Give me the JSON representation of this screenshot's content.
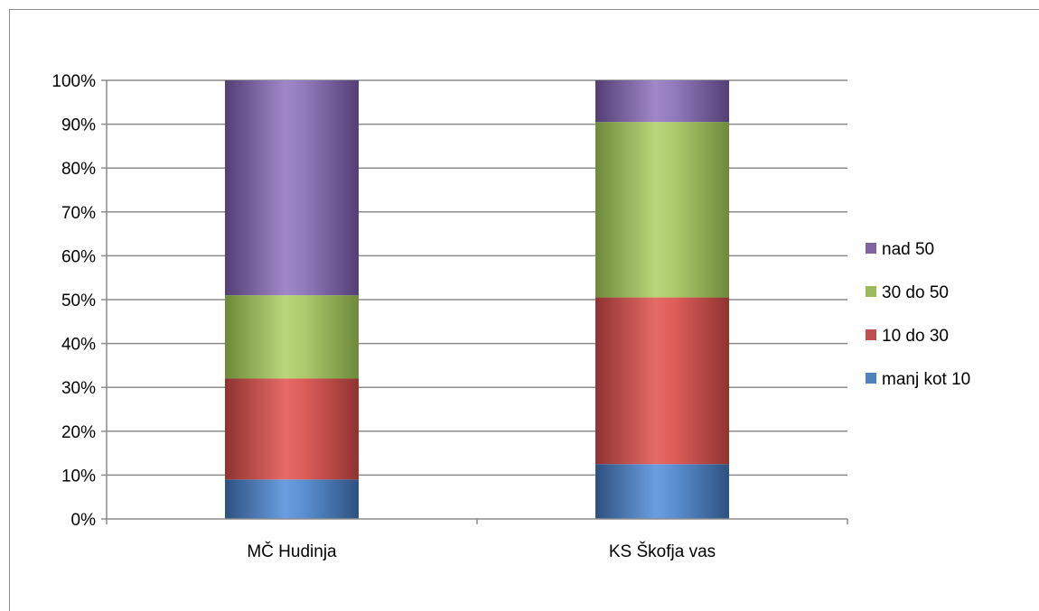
{
  "chart_data": {
    "type": "bar",
    "stacked": true,
    "percent": true,
    "categories": [
      "MČ Hudinja",
      "KS Škofja vas"
    ],
    "series": [
      {
        "name": "manj kot 10",
        "values": [
          9,
          12.5
        ],
        "color": "#4f81bd"
      },
      {
        "name": "10 do 30",
        "values": [
          23,
          38
        ],
        "color": "#c0504d"
      },
      {
        "name": "30 do 50",
        "values": [
          19,
          40
        ],
        "color": "#9bbb59"
      },
      {
        "name": "nad 50",
        "values": [
          49,
          9.5
        ],
        "color": "#8064a2"
      }
    ],
    "ylim": [
      0,
      100
    ],
    "yticks": [
      "0%",
      "10%",
      "20%",
      "30%",
      "40%",
      "50%",
      "60%",
      "70%",
      "80%",
      "90%",
      "100%"
    ],
    "grid": true,
    "legend": "right"
  }
}
